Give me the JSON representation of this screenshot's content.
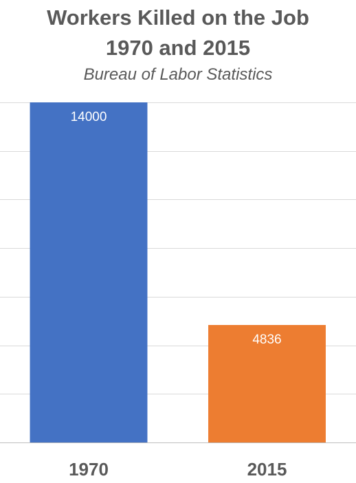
{
  "title_line1": "Workers Killed on the Job",
  "title_line2": "1970 and 2015",
  "subtitle": "Bureau of Labor Statistics",
  "chart_data": {
    "type": "bar",
    "categories": [
      "1970",
      "2015"
    ],
    "values": [
      14000,
      4836
    ],
    "colors": [
      "#4472C4",
      "#ED7D31"
    ],
    "data_labels": [
      "14000",
      "4836"
    ],
    "title": "Workers Killed on the Job 1970 and 2015",
    "subtitle": "Bureau of Labor Statistics",
    "xlabel": "",
    "ylabel": "",
    "ylim": [
      0,
      14000
    ],
    "grid": true,
    "legend": "none"
  }
}
